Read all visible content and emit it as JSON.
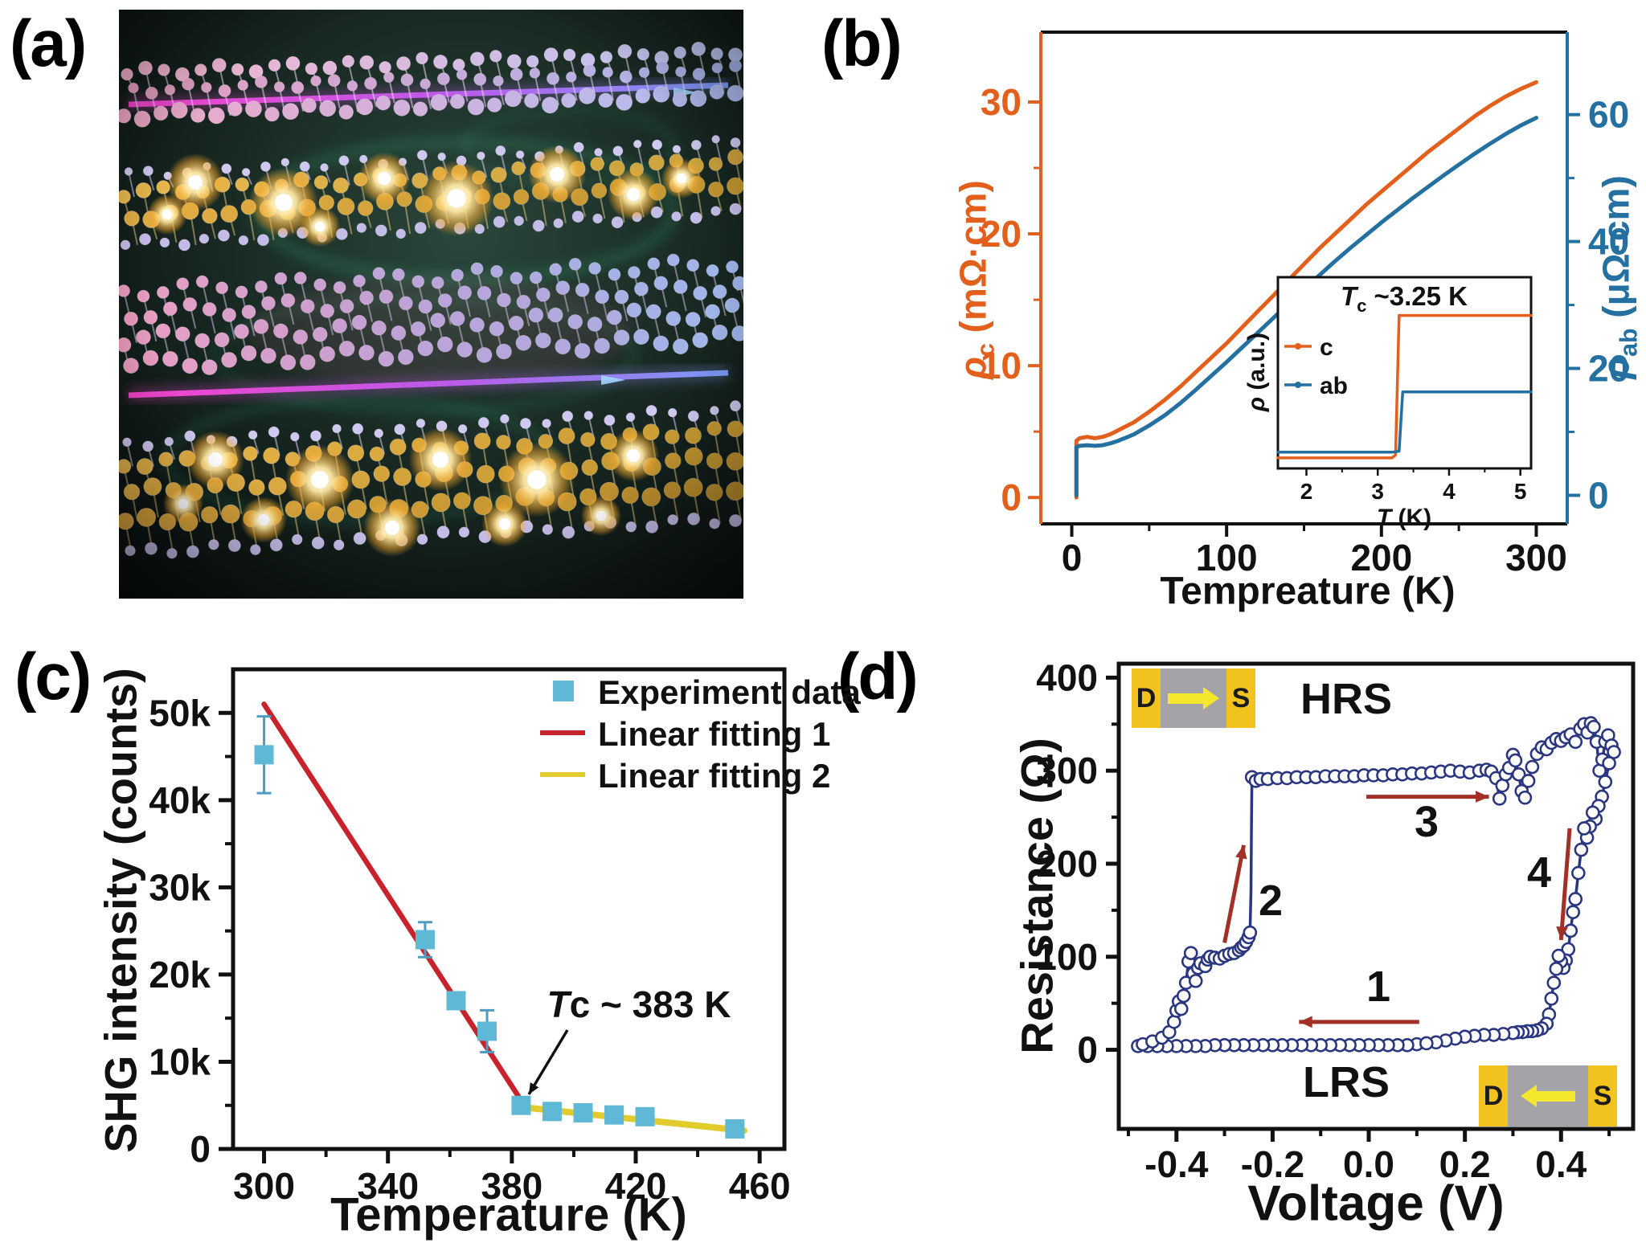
{
  "panel_labels": {
    "a": "(a)",
    "b": "(b)",
    "c": "(c)",
    "d": "(d)"
  },
  "colors": {
    "orange": "#E2601C",
    "steel_blue": "#2470A0",
    "sky_blue": "#5FB9D6",
    "error_blue": "#4E9DC0",
    "red": "#C8222C",
    "yellow": "#E2CB2D",
    "navy": "#2A3680",
    "dark_red_arrow": "#A13126",
    "electrode_yellow": "#F2C21E",
    "electrode_gray": "#A4A4A8",
    "electrode_arrow": "#F5E62E"
  },
  "panel_a": {
    "description": "3D illustration of stacked 2D crystal lattice layers (pink, blue, gold) with glowing intercalated ions and light beams"
  },
  "panel_b": {
    "xlabel": "Tempreature (K)",
    "left": {
      "sym": "ρ",
      "sub": "c",
      "unit": " (mΩ·cm)"
    },
    "right": {
      "sym": "ρ",
      "sub": "ab",
      "unit": " (μΩ·cm)"
    },
    "inset": {
      "title_sym": "T",
      "title_sub": "c",
      "title_rest": " ~3.25 K",
      "ylabel_sym": "ρ",
      "ylabel_rest": " (a.u.)",
      "xlabel_sym": "T",
      "xlabel_rest": " (K)",
      "legend": [
        "c",
        "ab"
      ]
    }
  },
  "panel_c": {
    "ylabel": "SHG intensity (counts)",
    "xlabel": "Temperature (K)",
    "legend": [
      "Experiment data",
      "Linear fitting 1",
      "Linear fitting 2"
    ],
    "ann_sym": "T",
    "ann_sub": "c",
    "ann_rest": " ~ 383 K"
  },
  "panel_d": {
    "ylabel": "Resistance (Ω)",
    "xlabel": "Voltage (V)",
    "hrs": "HRS",
    "lrs": "LRS",
    "steps": [
      "1",
      "2",
      "3",
      "4"
    ],
    "electrode_d": "D",
    "electrode_s": "S"
  },
  "chart_data": [
    {
      "panel": "b",
      "type": "line",
      "xlabel": "Tempreature (K)",
      "xlim": [
        -20,
        320
      ],
      "x_ticks": [
        0,
        100,
        200,
        300
      ],
      "x_minor": [
        50,
        150,
        250
      ],
      "left_axis": {
        "label": "ρc (mΩ·cm)",
        "color": "#E2601C",
        "lim": [
          -2,
          35.3
        ],
        "ticks": [
          0,
          10,
          20,
          30
        ],
        "minor": [
          5,
          15,
          25
        ]
      },
      "right_axis": {
        "label": "ρab (μΩ·cm)",
        "color": "#2470A0",
        "lim": [
          -4.5,
          73
        ],
        "ticks": [
          0,
          20,
          40,
          60
        ],
        "minor": [
          10,
          30,
          50
        ]
      },
      "series": [
        {
          "name": "c",
          "axis": "left",
          "color": "#E2601C",
          "x": [
            3,
            3,
            5,
            10,
            15,
            20,
            25,
            30,
            40,
            50,
            60,
            70,
            80,
            90,
            100,
            110,
            120,
            130,
            140,
            150,
            160,
            170,
            180,
            190,
            200,
            210,
            220,
            230,
            240,
            250,
            260,
            270,
            280,
            290,
            300
          ],
          "y": [
            0,
            4.3,
            4.5,
            4.6,
            4.5,
            4.6,
            4.8,
            5.1,
            5.7,
            6.5,
            7.4,
            8.4,
            9.5,
            10.6,
            11.7,
            12.9,
            14.1,
            15.3,
            16.5,
            17.7,
            18.9,
            20.0,
            21.1,
            22.2,
            23.2,
            24.2,
            25.2,
            26.2,
            27.1,
            28.0,
            28.9,
            29.7,
            30.4,
            31.0,
            31.5
          ]
        },
        {
          "name": "ab",
          "axis": "right",
          "color": "#2470A0",
          "x": [
            3,
            3,
            5,
            10,
            15,
            20,
            25,
            30,
            40,
            50,
            60,
            70,
            80,
            90,
            100,
            110,
            120,
            130,
            140,
            150,
            160,
            170,
            180,
            190,
            200,
            210,
            220,
            230,
            240,
            250,
            260,
            270,
            280,
            290,
            300
          ],
          "y": [
            0,
            7.6,
            7.8,
            7.9,
            7.8,
            7.9,
            8.2,
            8.6,
            9.6,
            11.0,
            12.6,
            14.5,
            16.6,
            18.8,
            21.0,
            23.3,
            25.6,
            27.9,
            30.2,
            32.5,
            34.7,
            36.9,
            39.0,
            41.0,
            43.0,
            44.9,
            46.8,
            48.6,
            50.4,
            52.1,
            53.8,
            55.4,
            56.9,
            58.3,
            59.5
          ]
        }
      ],
      "inset": {
        "title": "Tc ~3.25 K",
        "xlabel": "T (K)",
        "ylabel": "ρ (a.u.)",
        "xlim": [
          1.6,
          5.15
        ],
        "x_ticks": [
          2,
          3,
          4,
          5
        ],
        "ylim": [
          0,
          1
        ],
        "legend": [
          "c",
          "ab"
        ],
        "series": [
          {
            "name": "c",
            "color": "#E2601C",
            "x": [
              1.6,
              2.2,
              2.8,
              3.1,
              3.2,
              3.25,
              3.3,
              3.5,
              4.0,
              4.5,
              5.0,
              5.15
            ],
            "y": [
              0.055,
              0.055,
              0.055,
              0.055,
              0.055,
              0.07,
              0.8,
              0.8,
              0.8,
              0.8,
              0.8,
              0.8
            ]
          },
          {
            "name": "ab",
            "color": "#2470A0",
            "x": [
              1.6,
              2.2,
              2.8,
              3.1,
              3.2,
              3.3,
              3.35,
              3.45,
              3.6,
              4.0,
              4.5,
              5.0,
              5.15
            ],
            "y": [
              0.085,
              0.085,
              0.085,
              0.085,
              0.085,
              0.09,
              0.4,
              0.4,
              0.4,
              0.4,
              0.4,
              0.4,
              0.4
            ]
          }
        ]
      }
    },
    {
      "panel": "c",
      "type": "scatter",
      "title": "",
      "xlabel": "Temperature (K)",
      "ylabel": "SHG intensity (counts)",
      "xlim": [
        290,
        468
      ],
      "x_ticks": [
        300,
        340,
        380,
        420,
        460
      ],
      "x_minor": [
        320,
        360,
        400,
        440
      ],
      "ylim": [
        0,
        55000
      ],
      "y_ticks": [
        0,
        10000,
        20000,
        30000,
        40000,
        50000
      ],
      "y_tick_labels": [
        "0",
        "10k",
        "20k",
        "30k",
        "40k",
        "50k"
      ],
      "y_minor": [
        5000,
        15000,
        25000,
        35000,
        45000
      ],
      "points": {
        "color": "#5FB9D6",
        "err_color": "#4E9DC0",
        "t": [
          300,
          352,
          362,
          372,
          383,
          393,
          403,
          413,
          423,
          452
        ],
        "i": [
          45200,
          24000,
          17000,
          13500,
          5000,
          4300,
          4150,
          3900,
          3700,
          2300
        ],
        "err": [
          4400,
          2000,
          900,
          2400,
          700,
          500,
          450,
          450,
          420,
          700
        ]
      },
      "fit1": {
        "label": "Linear fitting 1",
        "color": "#C8222C",
        "x": [
          300,
          384
        ],
        "y": [
          51000,
          5000
        ]
      },
      "fit2": {
        "label": "Linear fitting 2",
        "color": "#E2CB2D",
        "x": [
          383,
          455
        ],
        "y": [
          4800,
          2100
        ]
      },
      "legend": [
        "Experiment data",
        "Linear fitting 1",
        "Linear fitting 2"
      ],
      "annotation": "Tc ~ 383 K",
      "annotation_points_to": [
        383,
        5000
      ]
    },
    {
      "panel": "d",
      "type": "line",
      "xlabel": "Voltage (V)",
      "ylabel": "Resistance (Ω)",
      "xlim": [
        -0.52,
        0.55
      ],
      "x_ticks": [
        -0.4,
        -0.2,
        0.0,
        0.2,
        0.4
      ],
      "x_tick_labels": [
        "-0.4",
        "-0.2",
        "0.0",
        "0.2",
        "0.4"
      ],
      "x_minor": [
        -0.5,
        -0.3,
        -0.1,
        0.1,
        0.3,
        0.5
      ],
      "ylim": [
        -85,
        415
      ],
      "y_ticks": [
        0,
        100,
        200,
        300,
        400
      ],
      "y_minor": [
        50,
        150,
        250,
        350
      ],
      "color": "#2A3680",
      "labels": {
        "hrs": "HRS",
        "lrs": "LRS",
        "steps": [
          "1",
          "2",
          "3",
          "4"
        ]
      },
      "arrows": [
        [
          0.105,
          30,
          -0.145,
          30
        ],
        [
          -0.3,
          115,
          -0.26,
          220
        ],
        [
          -0.005,
          272,
          0.25,
          272
        ],
        [
          0.418,
          238,
          0.4,
          118
        ]
      ],
      "loop": [
        [
          0.1,
          6
        ],
        [
          0.08,
          5
        ],
        [
          0.06,
          5
        ],
        [
          0.04,
          5
        ],
        [
          0.02,
          5
        ],
        [
          0.0,
          5
        ],
        [
          -0.02,
          5
        ],
        [
          -0.04,
          5
        ],
        [
          -0.06,
          5
        ],
        [
          -0.08,
          5
        ],
        [
          -0.1,
          5
        ],
        [
          -0.12,
          5
        ],
        [
          -0.14,
          5
        ],
        [
          -0.16,
          5
        ],
        [
          -0.18,
          5
        ],
        [
          -0.2,
          5
        ],
        [
          -0.22,
          5
        ],
        [
          -0.24,
          5
        ],
        [
          -0.26,
          5
        ],
        [
          -0.28,
          5
        ],
        [
          -0.3,
          5
        ],
        [
          -0.32,
          5
        ],
        [
          -0.34,
          4
        ],
        [
          -0.36,
          4
        ],
        [
          -0.38,
          4
        ],
        [
          -0.4,
          4
        ],
        [
          -0.42,
          4
        ],
        [
          -0.44,
          4
        ],
        [
          -0.46,
          4
        ],
        [
          -0.48,
          4
        ],
        [
          -0.47,
          6
        ],
        [
          -0.45,
          9
        ],
        [
          -0.43,
          13
        ],
        [
          -0.415,
          19
        ],
        [
          -0.405,
          30
        ],
        [
          -0.4,
          42
        ],
        [
          -0.395,
          52
        ],
        [
          -0.39,
          44
        ],
        [
          -0.385,
          58
        ],
        [
          -0.38,
          72
        ],
        [
          -0.375,
          95
        ],
        [
          -0.37,
          104
        ],
        [
          -0.365,
          82
        ],
        [
          -0.36,
          74
        ],
        [
          -0.355,
          88
        ],
        [
          -0.35,
          93
        ],
        [
          -0.34,
          90
        ],
        [
          -0.335,
          97
        ],
        [
          -0.33,
          100
        ],
        [
          -0.32,
          99
        ],
        [
          -0.31,
          98
        ],
        [
          -0.3,
          101
        ],
        [
          -0.29,
          103
        ],
        [
          -0.28,
          104
        ],
        [
          -0.27,
          107
        ],
        [
          -0.265,
          110
        ],
        [
          -0.26,
          112
        ],
        [
          -0.255,
          116
        ],
        [
          -0.25,
          121
        ],
        [
          -0.247,
          126
        ],
        [
          -0.245,
          170
        ],
        [
          -0.244,
          240
        ],
        [
          -0.243,
          293
        ],
        [
          -0.235,
          289
        ],
        [
          -0.225,
          291
        ],
        [
          -0.21,
          291
        ],
        [
          -0.19,
          292
        ],
        [
          -0.17,
          292
        ],
        [
          -0.15,
          293
        ],
        [
          -0.13,
          293
        ],
        [
          -0.11,
          293
        ],
        [
          -0.09,
          294
        ],
        [
          -0.07,
          294
        ],
        [
          -0.05,
          294
        ],
        [
          -0.03,
          294
        ],
        [
          -0.01,
          295
        ],
        [
          0.01,
          295
        ],
        [
          0.03,
          295
        ],
        [
          0.05,
          296
        ],
        [
          0.07,
          296
        ],
        [
          0.09,
          297
        ],
        [
          0.11,
          297
        ],
        [
          0.13,
          298
        ],
        [
          0.15,
          299
        ],
        [
          0.17,
          300
        ],
        [
          0.19,
          299
        ],
        [
          0.21,
          298
        ],
        [
          0.23,
          300
        ],
        [
          0.245,
          301
        ],
        [
          0.255,
          299
        ],
        [
          0.265,
          292
        ],
        [
          0.272,
          270
        ],
        [
          0.278,
          284
        ],
        [
          0.285,
          296
        ],
        [
          0.292,
          303
        ],
        [
          0.3,
          317
        ],
        [
          0.305,
          311
        ],
        [
          0.312,
          296
        ],
        [
          0.318,
          278
        ],
        [
          0.325,
          271
        ],
        [
          0.332,
          289
        ],
        [
          0.34,
          304
        ],
        [
          0.35,
          318
        ],
        [
          0.36,
          325
        ],
        [
          0.37,
          323
        ],
        [
          0.38,
          330
        ],
        [
          0.39,
          334
        ],
        [
          0.4,
          332
        ],
        [
          0.41,
          336
        ],
        [
          0.42,
          339
        ],
        [
          0.43,
          331
        ],
        [
          0.44,
          345
        ],
        [
          0.448,
          350
        ],
        [
          0.455,
          341
        ],
        [
          0.462,
          351
        ],
        [
          0.468,
          347
        ],
        [
          0.474,
          331
        ],
        [
          0.48,
          300
        ],
        [
          0.486,
          312
        ],
        [
          0.492,
          331
        ],
        [
          0.498,
          338
        ],
        [
          0.505,
          327
        ],
        [
          0.51,
          320
        ],
        [
          0.5,
          308
        ],
        [
          0.492,
          288
        ],
        [
          0.485,
          272
        ],
        [
          0.478,
          262
        ],
        [
          0.472,
          248
        ],
        [
          0.466,
          255
        ],
        [
          0.46,
          240
        ],
        [
          0.454,
          228
        ],
        [
          0.448,
          238
        ],
        [
          0.442,
          215
        ],
        [
          0.436,
          190
        ],
        [
          0.43,
          162
        ],
        [
          0.425,
          148
        ],
        [
          0.42,
          128
        ],
        [
          0.415,
          108
        ],
        [
          0.41,
          96
        ],
        [
          0.405,
          88
        ],
        [
          0.4,
          95
        ],
        [
          0.395,
          101
        ],
        [
          0.39,
          87
        ],
        [
          0.385,
          72
        ],
        [
          0.38,
          55
        ],
        [
          0.375,
          38
        ],
        [
          0.37,
          28
        ],
        [
          0.36,
          23
        ],
        [
          0.35,
          21
        ],
        [
          0.34,
          20
        ],
        [
          0.33,
          20
        ],
        [
          0.32,
          19
        ],
        [
          0.31,
          19
        ],
        [
          0.3,
          18
        ],
        [
          0.28,
          17
        ],
        [
          0.26,
          16
        ],
        [
          0.24,
          16
        ],
        [
          0.22,
          15
        ],
        [
          0.2,
          14
        ],
        [
          0.18,
          12
        ],
        [
          0.16,
          10
        ],
        [
          0.14,
          8
        ],
        [
          0.12,
          7
        ]
      ]
    }
  ]
}
